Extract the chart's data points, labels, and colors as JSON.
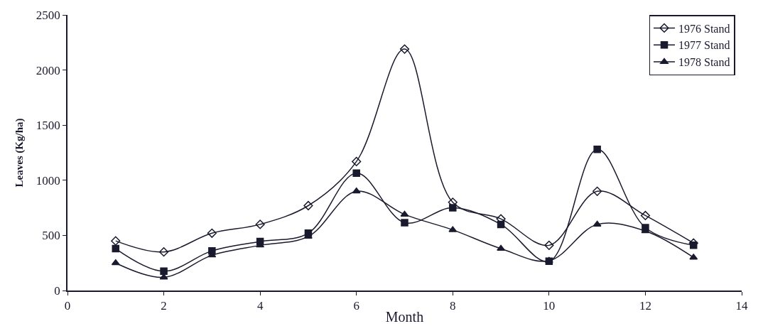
{
  "chart_data": {
    "type": "line",
    "xlabel": "Month",
    "ylabel": "Leaves (Kg/ha)",
    "x": [
      1,
      2,
      3,
      4,
      5,
      6,
      7,
      8,
      9,
      10,
      11,
      12,
      13
    ],
    "series": [
      {
        "name": "1976 Stand",
        "color": "#1a1a2e",
        "marker": "diamond",
        "values": [
          450,
          350,
          520,
          600,
          770,
          1170,
          2190,
          800,
          650,
          410,
          900,
          680,
          430
        ]
      },
      {
        "name": "1977 Stand",
        "color": "#1a1a2e",
        "marker": "square",
        "values": [
          380,
          175,
          360,
          445,
          520,
          1065,
          615,
          750,
          600,
          265,
          1280,
          570,
          410
        ]
      },
      {
        "name": "1978 Stand",
        "color": "#1a1a2e",
        "marker": "triangle",
        "values": [
          250,
          120,
          320,
          410,
          490,
          900,
          690,
          550,
          380,
          270,
          600,
          540,
          300
        ]
      }
    ],
    "xlim": [
      0,
      14
    ],
    "xticks": [
      0,
      2,
      4,
      6,
      8,
      10,
      12,
      14
    ],
    "ylim": [
      0,
      2500
    ],
    "yticks": [
      0,
      500,
      1000,
      1500,
      2000,
      2500
    ],
    "legend": "top right",
    "line_style": "solid"
  }
}
